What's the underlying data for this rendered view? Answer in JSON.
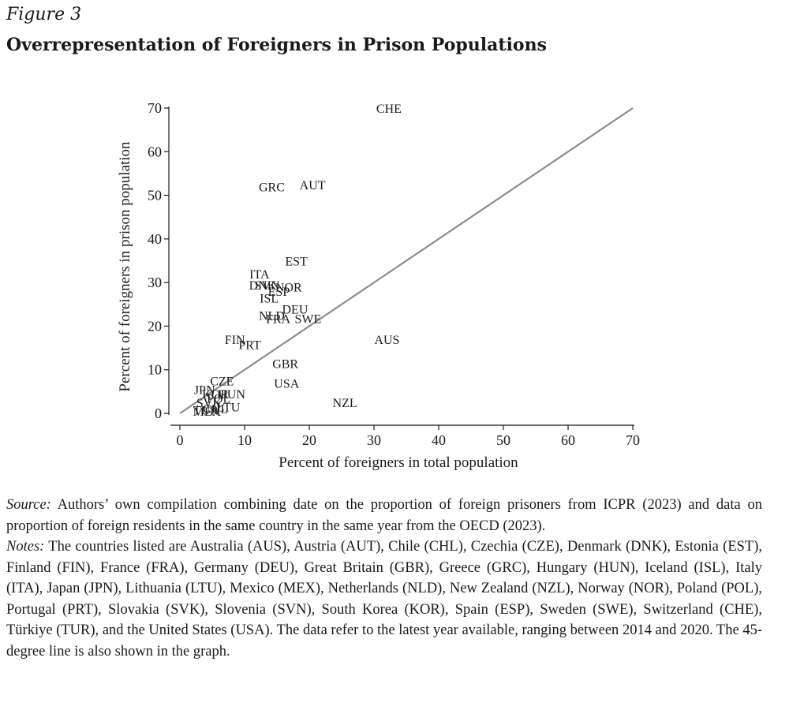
{
  "figure": {
    "label": "Figure 3",
    "title": "Overrepresentation of Foreigners in Prison Populations"
  },
  "chart_data": {
    "type": "scatter",
    "xlabel": "Percent of foreigners in total population",
    "ylabel": "Percent of foreigners in prison population",
    "xlim": [
      0,
      70
    ],
    "ylim": [
      0,
      70
    ],
    "x_ticks": [
      "0",
      "10",
      "20",
      "30",
      "40",
      "50",
      "60",
      "70"
    ],
    "y_ticks": [
      "0",
      "10",
      "20",
      "30",
      "40",
      "50",
      "60",
      "70"
    ],
    "reference_line": {
      "label": "45-degree line",
      "from": [
        0,
        0
      ],
      "to": [
        70,
        70
      ]
    },
    "points": [
      {
        "label": "CHE",
        "x": 32.3,
        "y": 70.0
      },
      {
        "label": "GRC",
        "x": 14.2,
        "y": 52.0
      },
      {
        "label": "AUT",
        "x": 20.5,
        "y": 52.5
      },
      {
        "label": "EST",
        "x": 18.0,
        "y": 35.0
      },
      {
        "label": "ITA",
        "x": 12.3,
        "y": 32.0
      },
      {
        "label": "DNK",
        "x": 12.8,
        "y": 29.5
      },
      {
        "label": "SVN",
        "x": 13.5,
        "y": 29.5
      },
      {
        "label": "NOR",
        "x": 16.8,
        "y": 29.0
      },
      {
        "label": "ESP",
        "x": 15.3,
        "y": 28.0
      },
      {
        "label": "ISL",
        "x": 13.8,
        "y": 26.5
      },
      {
        "label": "DEU",
        "x": 17.8,
        "y": 24.0
      },
      {
        "label": "NLD",
        "x": 14.2,
        "y": 22.5
      },
      {
        "label": "FRA",
        "x": 15.2,
        "y": 21.8
      },
      {
        "label": "SWE",
        "x": 19.8,
        "y": 21.8
      },
      {
        "label": "AUS",
        "x": 32.0,
        "y": 17.0
      },
      {
        "label": "FIN",
        "x": 8.5,
        "y": 17.0
      },
      {
        "label": "PRT",
        "x": 10.8,
        "y": 15.8
      },
      {
        "label": "GBR",
        "x": 16.3,
        "y": 11.5
      },
      {
        "label": "USA",
        "x": 16.5,
        "y": 7.0
      },
      {
        "label": "NZL",
        "x": 25.5,
        "y": 2.5
      },
      {
        "label": "CZE",
        "x": 6.5,
        "y": 7.5
      },
      {
        "label": "JPN",
        "x": 3.8,
        "y": 5.5
      },
      {
        "label": "KOR",
        "x": 5.5,
        "y": 4.5
      },
      {
        "label": "HUN",
        "x": 8.0,
        "y": 4.5
      },
      {
        "label": "POL",
        "x": 6.0,
        "y": 3.5
      },
      {
        "label": "SVK",
        "x": 4.5,
        "y": 2.5
      },
      {
        "label": "LTU",
        "x": 7.5,
        "y": 1.5
      },
      {
        "label": "CHL",
        "x": 5.5,
        "y": 1.2
      },
      {
        "label": "TUR",
        "x": 4.0,
        "y": 0.8
      },
      {
        "label": "MEX",
        "x": 4.2,
        "y": 0.5
      }
    ]
  },
  "notes": {
    "source_label": "Source:",
    "source_text": "Authors’ own compilation combining date on the proportion of foreign prisoners from ICPR (2023) and data on proportion of foreign residents in the same country in the same year from the OECD (2023).",
    "notes_label": "Notes:",
    "notes_text": "The countries listed are Australia (AUS), Austria (AUT), Chile (CHL), Czechia (CZE), Denmark (DNK), Estonia (EST), Finland (FIN), France (FRA), Germany (DEU), Great Britain (GBR), Greece (GRC), Hungary (HUN), Iceland (ISL), Italy (ITA), Japan (JPN), Lithuania (LTU), Mexico (MEX), Netherlands (NLD), New Zealand (NZL), Norway (NOR), Poland (POL), Portugal (PRT), Slovakia (SVK), Slovenia (SVN), South Korea (KOR), Spain (ESP), Sweden (SWE), Switzerland (CHE), Türkiye (TUR), and the United States (USA). The data refer to the latest year available, ranging between 2014 and 2020. The 45-degree line is also shown in the graph."
  }
}
